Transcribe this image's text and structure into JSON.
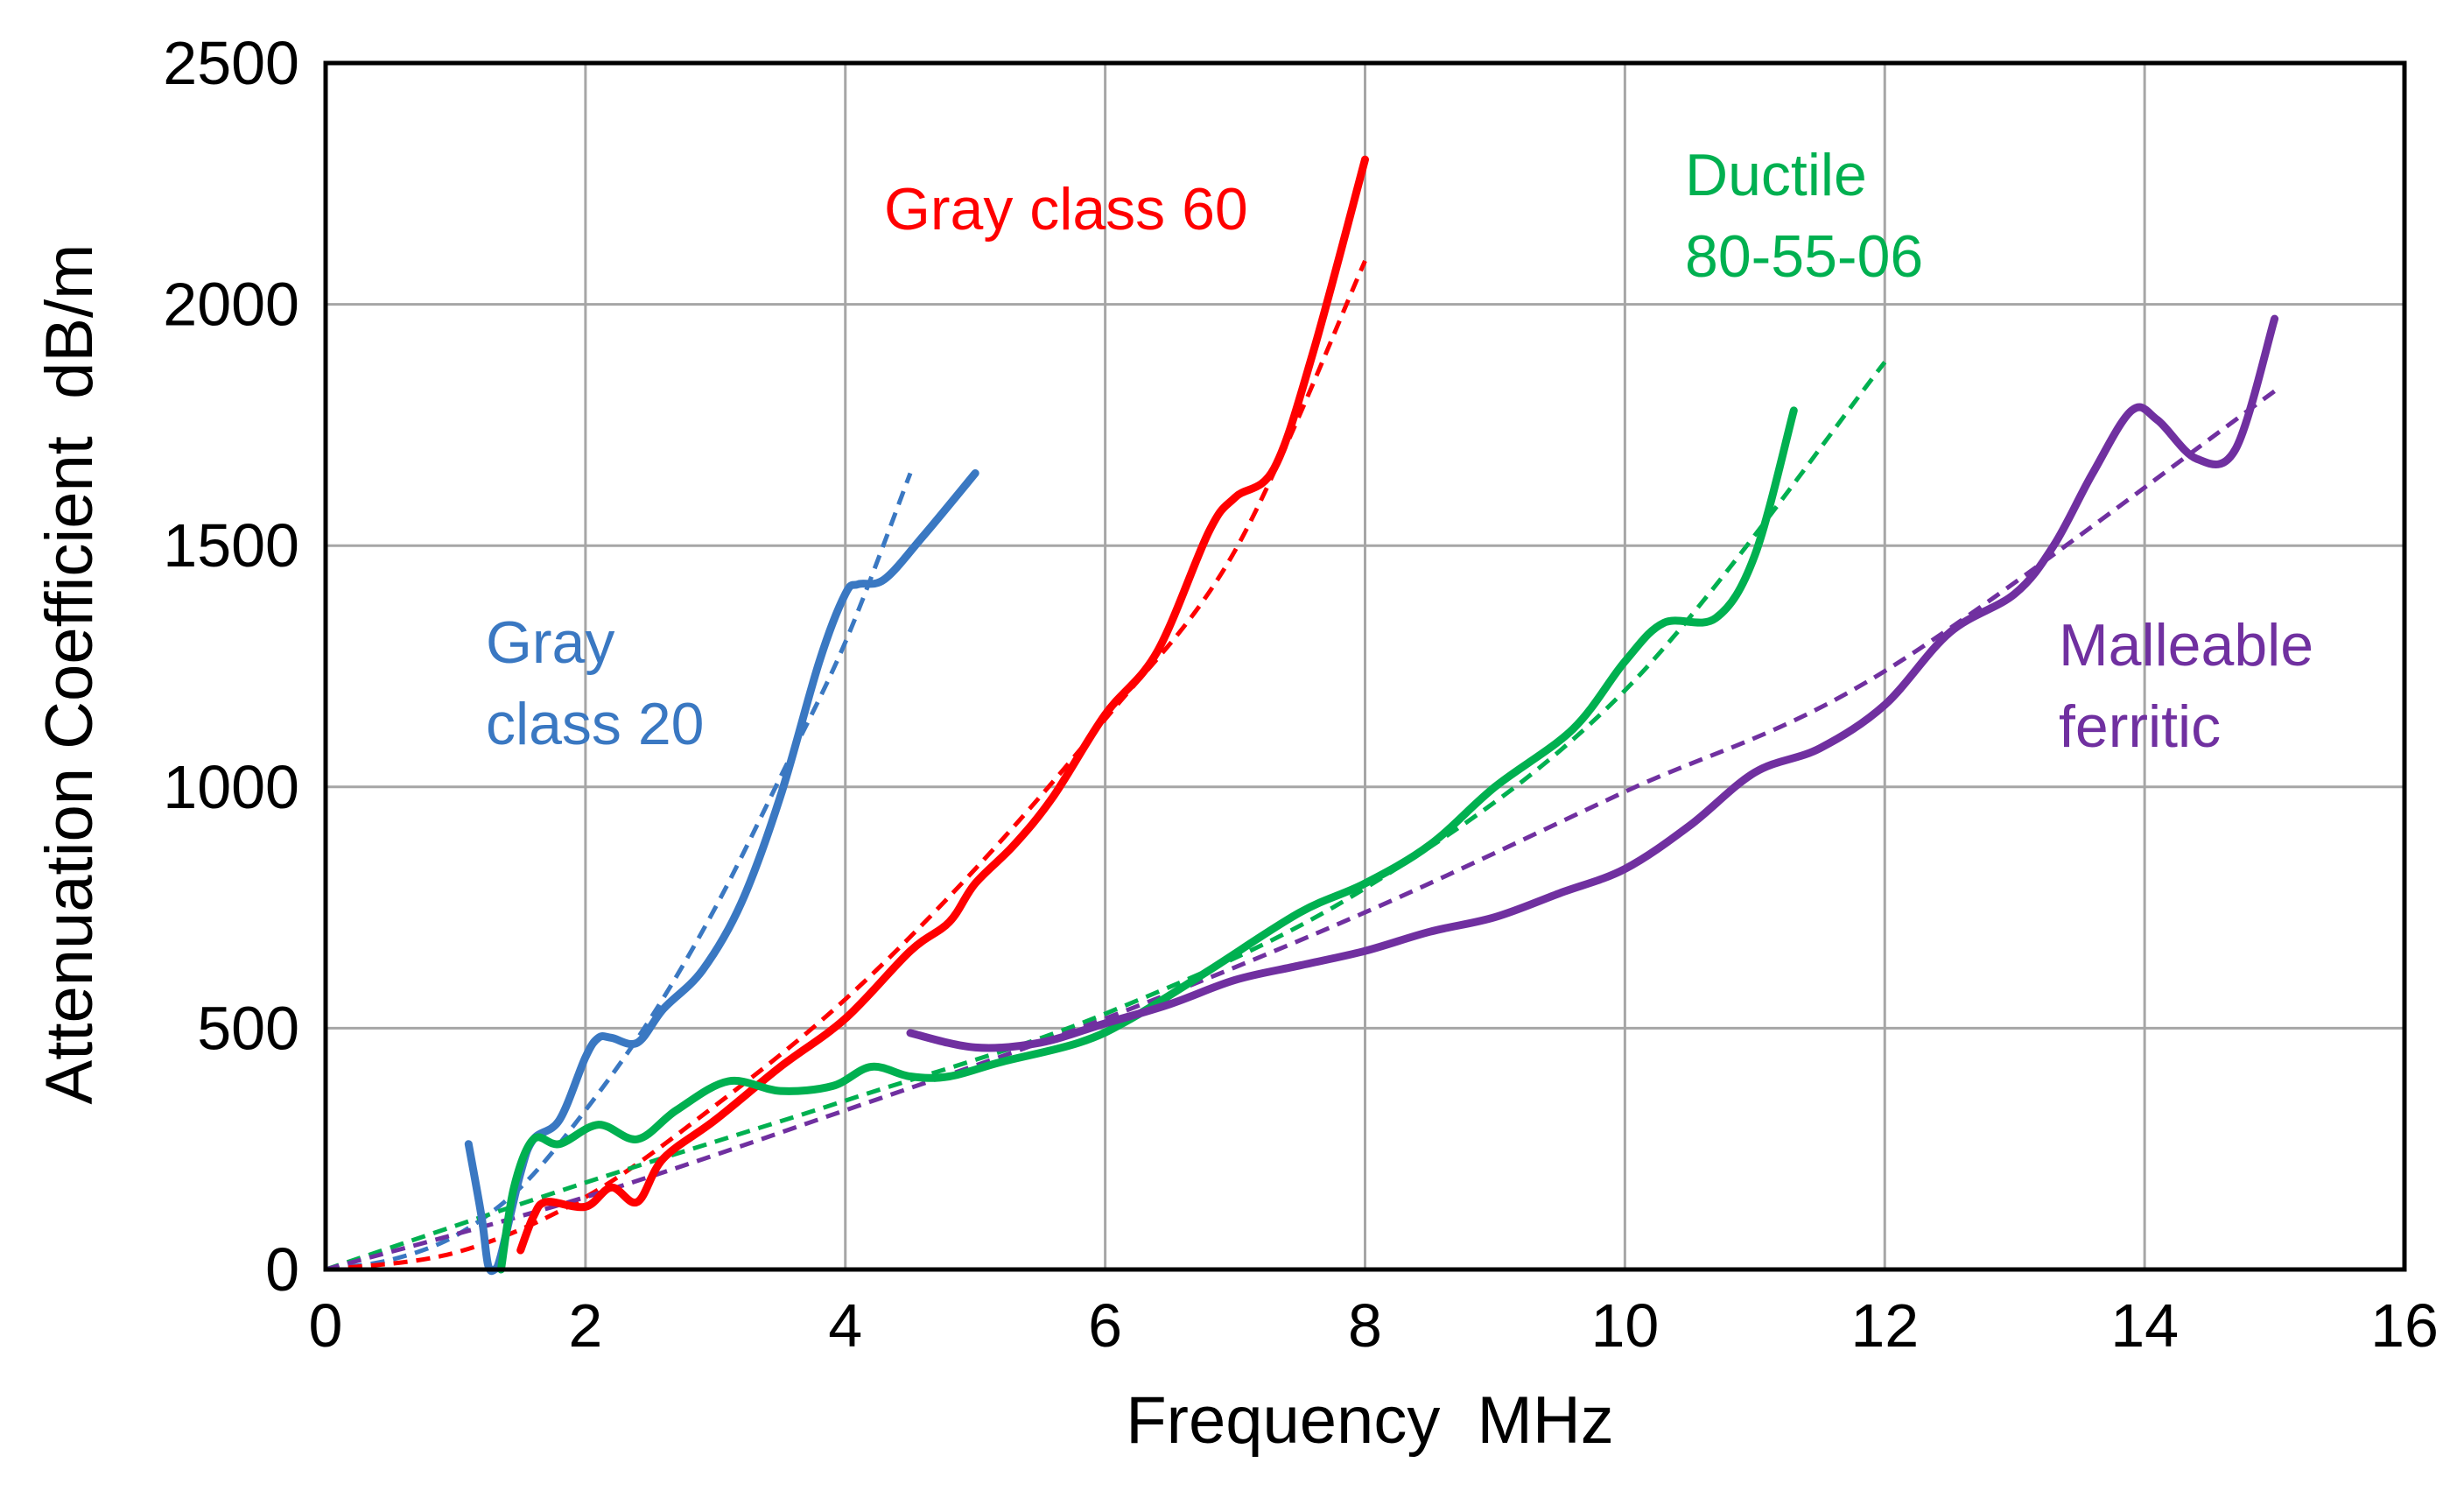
{
  "chart_data": {
    "type": "line",
    "title": "",
    "xlabel": "Frequency  MHz",
    "ylabel": "Attenuation Coefficient  dB/m",
    "xlim": [
      0,
      16
    ],
    "ylim": [
      0,
      2500
    ],
    "x_ticks": [
      "0",
      "2",
      "4",
      "6",
      "8",
      "10",
      "12",
      "14",
      "16"
    ],
    "y_ticks": [
      "0",
      "500",
      "1000",
      "1500",
      "2000",
      "2500"
    ],
    "grid": true,
    "legend": "inline labels",
    "series": [
      {
        "name": "Gray class 20",
        "label_lines": [
          "Gray",
          "class 20"
        ],
        "color": "#3a78c2",
        "measured": [
          [
            1.1,
            260
          ],
          [
            1.2,
            110
          ],
          [
            1.25,
            10
          ],
          [
            1.3,
            0
          ],
          [
            1.35,
            30
          ],
          [
            1.5,
            200
          ],
          [
            1.6,
            270
          ],
          [
            1.8,
            310
          ],
          [
            2.0,
            440
          ],
          [
            2.1,
            480
          ],
          [
            2.2,
            480
          ],
          [
            2.4,
            470
          ],
          [
            2.6,
            540
          ],
          [
            2.9,
            620
          ],
          [
            3.2,
            760
          ],
          [
            3.5,
            980
          ],
          [
            3.8,
            1260
          ],
          [
            4.0,
            1400
          ],
          [
            4.1,
            1420
          ],
          [
            4.3,
            1430
          ],
          [
            4.6,
            1520
          ],
          [
            5.0,
            1650
          ]
        ],
        "fit": [
          [
            0,
            0
          ],
          [
            0.5,
            20
          ],
          [
            1.0,
            70
          ],
          [
            1.5,
            170
          ],
          [
            2.0,
            330
          ],
          [
            2.5,
            520
          ],
          [
            3.0,
            750
          ],
          [
            3.5,
            1020
          ],
          [
            4.0,
            1300
          ],
          [
            4.5,
            1650
          ]
        ]
      },
      {
        "name": "Gray class 60",
        "label_lines": [
          "Gray class 60"
        ],
        "color": "#ff0000",
        "measured": [
          [
            1.5,
            40
          ],
          [
            1.6,
            110
          ],
          [
            1.7,
            140
          ],
          [
            2.0,
            130
          ],
          [
            2.2,
            170
          ],
          [
            2.4,
            140
          ],
          [
            2.6,
            230
          ],
          [
            3.0,
            310
          ],
          [
            3.5,
            420
          ],
          [
            4.0,
            520
          ],
          [
            4.5,
            660
          ],
          [
            4.8,
            720
          ],
          [
            5.0,
            800
          ],
          [
            5.3,
            880
          ],
          [
            5.6,
            980
          ],
          [
            6.0,
            1150
          ],
          [
            6.4,
            1280
          ],
          [
            6.8,
            1530
          ],
          [
            7.0,
            1600
          ],
          [
            7.3,
            1660
          ],
          [
            7.6,
            1900
          ],
          [
            8.0,
            2300
          ]
        ],
        "fit": [
          [
            0,
            0
          ],
          [
            1,
            35
          ],
          [
            2,
            150
          ],
          [
            3,
            340
          ],
          [
            4,
            560
          ],
          [
            5,
            830
          ],
          [
            6,
            1140
          ],
          [
            7,
            1490
          ],
          [
            8,
            2090
          ]
        ]
      },
      {
        "name": "Ductile 80-55-06",
        "label_lines": [
          "Ductile",
          "80-55-06"
        ],
        "color": "#00b050",
        "measured": [
          [
            1.35,
            0
          ],
          [
            1.45,
            170
          ],
          [
            1.6,
            270
          ],
          [
            1.8,
            260
          ],
          [
            2.1,
            300
          ],
          [
            2.4,
            270
          ],
          [
            2.7,
            330
          ],
          [
            3.1,
            390
          ],
          [
            3.5,
            370
          ],
          [
            3.9,
            380
          ],
          [
            4.2,
            420
          ],
          [
            4.5,
            400
          ],
          [
            4.8,
            400
          ],
          [
            5.2,
            430
          ],
          [
            5.8,
            470
          ],
          [
            6.2,
            520
          ],
          [
            6.8,
            620
          ],
          [
            7.5,
            740
          ],
          [
            8.0,
            800
          ],
          [
            8.5,
            880
          ],
          [
            9.0,
            1000
          ],
          [
            9.6,
            1120
          ],
          [
            10.0,
            1260
          ],
          [
            10.3,
            1340
          ],
          [
            10.7,
            1350
          ],
          [
            11.0,
            1480
          ],
          [
            11.3,
            1780
          ]
        ],
        "fit": [
          [
            0,
            0
          ],
          [
            2,
            180
          ],
          [
            4,
            350
          ],
          [
            6,
            530
          ],
          [
            8,
            790
          ],
          [
            10,
            1200
          ],
          [
            12,
            1880
          ]
        ]
      },
      {
        "name": "Malleable ferritic",
        "label_lines": [
          "Malleable",
          "ferritic"
        ],
        "color": "#7030a0",
        "measured": [
          [
            4.5,
            490
          ],
          [
            5.0,
            460
          ],
          [
            5.5,
            470
          ],
          [
            6.0,
            510
          ],
          [
            6.5,
            550
          ],
          [
            7.0,
            600
          ],
          [
            7.5,
            630
          ],
          [
            8.0,
            660
          ],
          [
            8.5,
            700
          ],
          [
            9.0,
            730
          ],
          [
            9.5,
            780
          ],
          [
            10.0,
            830
          ],
          [
            10.5,
            920
          ],
          [
            11.0,
            1030
          ],
          [
            11.5,
            1080
          ],
          [
            12.0,
            1170
          ],
          [
            12.5,
            1320
          ],
          [
            13.0,
            1400
          ],
          [
            13.3,
            1500
          ],
          [
            13.6,
            1650
          ],
          [
            13.9,
            1780
          ],
          [
            14.1,
            1760
          ],
          [
            14.4,
            1680
          ],
          [
            14.7,
            1700
          ],
          [
            15.0,
            1970
          ]
        ],
        "fit": [
          [
            0,
            0
          ],
          [
            2,
            150
          ],
          [
            4,
            330
          ],
          [
            6,
            520
          ],
          [
            8,
            740
          ],
          [
            10,
            990
          ],
          [
            12,
            1240
          ],
          [
            15,
            1820
          ]
        ]
      }
    ]
  }
}
